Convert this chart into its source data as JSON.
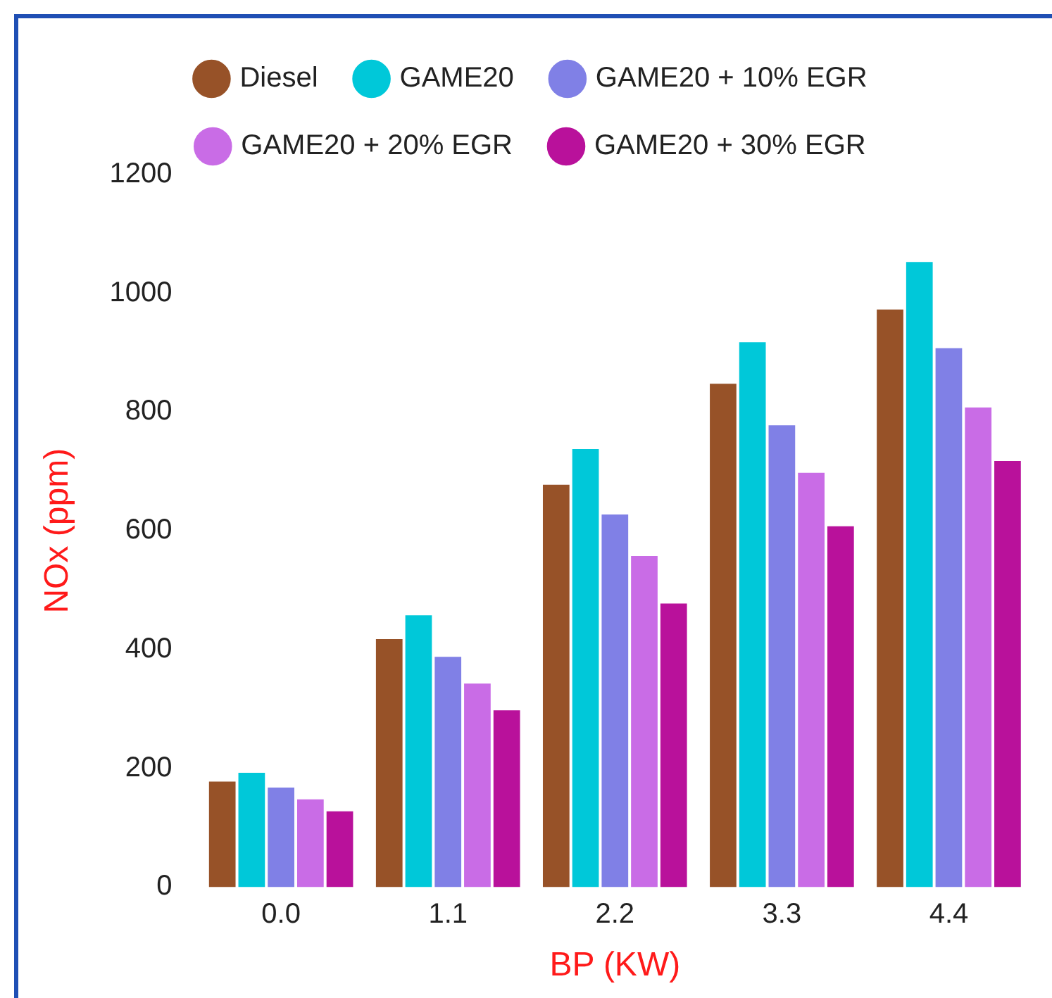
{
  "chart_data": {
    "type": "bar",
    "xlabel": "BP (KW)",
    "ylabel": "NOx (ppm)",
    "categories": [
      "0.0",
      "1.1",
      "2.2",
      "3.3",
      "4.4"
    ],
    "series": [
      {
        "name": "Diesel",
        "color": "#975228",
        "values": [
          180,
          420,
          680,
          850,
          975
        ]
      },
      {
        "name": "GAME20",
        "color": "#00c8d9",
        "values": [
          195,
          460,
          740,
          920,
          1055
        ]
      },
      {
        "name": "GAME20 + 10% EGR",
        "color": "#8080e6",
        "values": [
          170,
          390,
          630,
          780,
          910
        ]
      },
      {
        "name": "GAME20 + 20% EGR",
        "color": "#c96ce6",
        "values": [
          150,
          345,
          560,
          700,
          810
        ]
      },
      {
        "name": "GAME20 + 30% EGR",
        "color": "#b9119b",
        "values": [
          130,
          300,
          480,
          610,
          720
        ]
      }
    ],
    "ylim": [
      0,
      1200
    ],
    "yticks": [
      0,
      200,
      400,
      600,
      800,
      1000,
      1200
    ],
    "grid": false,
    "legend": "top"
  }
}
